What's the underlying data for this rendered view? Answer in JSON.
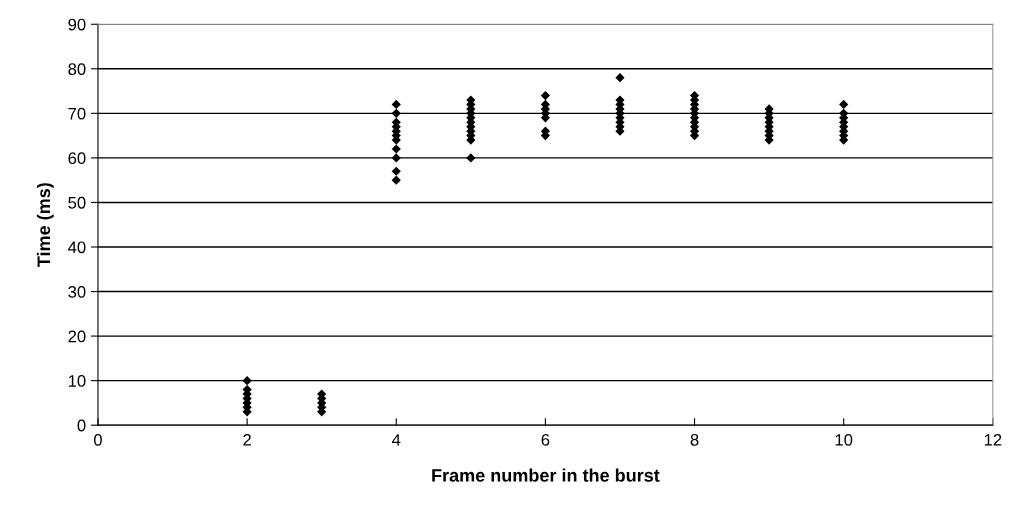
{
  "chart_data": {
    "type": "scatter",
    "xlabel": "Frame number in the burst",
    "ylabel": "Time (ms)",
    "x": [
      2,
      2,
      2,
      2,
      2,
      2,
      2,
      3,
      3,
      3,
      3,
      3,
      4,
      4,
      4,
      4,
      4,
      4,
      4,
      4,
      4,
      4,
      4,
      5,
      5,
      5,
      5,
      5,
      5,
      5,
      5,
      5,
      5,
      5,
      6,
      6,
      6,
      6,
      6,
      6,
      6,
      7,
      7,
      7,
      7,
      7,
      7,
      7,
      7,
      7,
      8,
      8,
      8,
      8,
      8,
      8,
      8,
      8,
      8,
      8,
      9,
      9,
      9,
      9,
      9,
      9,
      9,
      9,
      10,
      10,
      10,
      10,
      10,
      10,
      10,
      10
    ],
    "values": [
      3,
      4,
      5,
      6,
      7,
      8,
      10,
      3,
      4,
      5,
      6,
      7,
      55,
      57,
      60,
      62,
      64,
      65,
      66,
      67,
      68,
      70,
      72,
      60,
      64,
      65,
      66,
      67,
      68,
      69,
      70,
      71,
      72,
      73,
      65,
      66,
      69,
      70,
      71,
      72,
      74,
      66,
      67,
      68,
      69,
      70,
      71,
      72,
      73,
      78,
      65,
      66,
      67,
      68,
      69,
      70,
      71,
      72,
      73,
      74,
      64,
      65,
      66,
      67,
      68,
      69,
      70,
      71,
      64,
      65,
      66,
      67,
      68,
      69,
      70,
      72
    ],
    "color": "#000000",
    "marker": "diamond",
    "grid": "y",
    "xlim": [
      0,
      12
    ],
    "xticks": [
      0,
      2,
      4,
      6,
      8,
      10,
      12
    ],
    "ylim": [
      0,
      90
    ],
    "yticks": [
      0,
      10,
      20,
      30,
      40,
      50,
      60,
      70,
      80,
      90
    ]
  }
}
